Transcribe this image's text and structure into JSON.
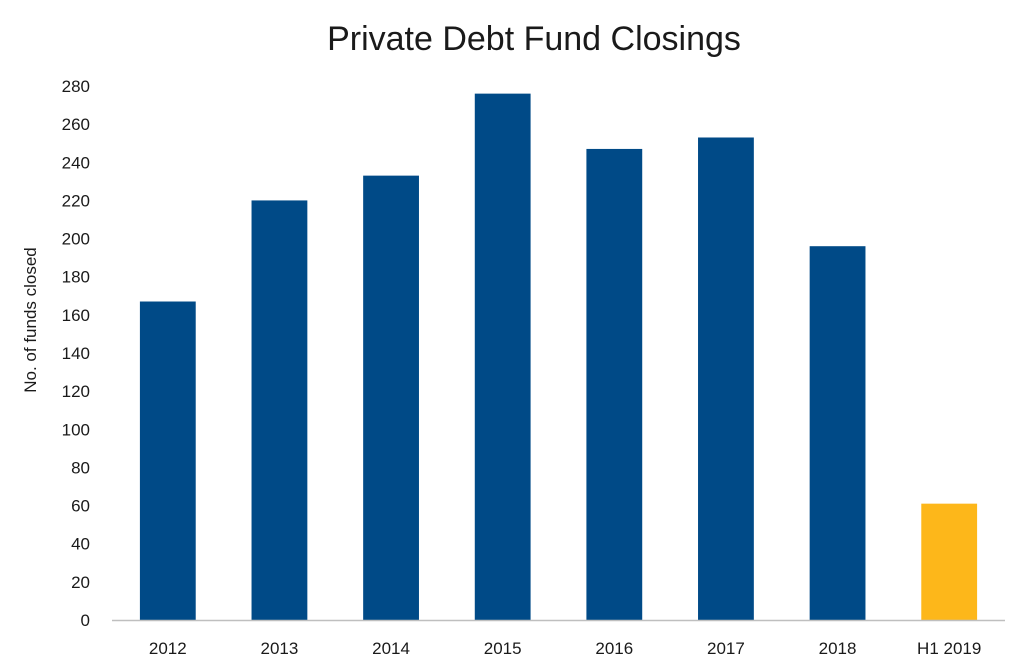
{
  "chart_data": {
    "type": "bar",
    "title": "Private Debt Fund Closings",
    "xlabel": "",
    "ylabel": "No. of funds closed",
    "categories": [
      "2012",
      "2013",
      "2014",
      "2015",
      "2016",
      "2017",
      "2018",
      "H1 2019"
    ],
    "values": [
      167,
      220,
      233,
      276,
      247,
      253,
      196,
      61
    ],
    "ylim": [
      0,
      280
    ],
    "yticks": [
      0,
      20,
      40,
      60,
      80,
      100,
      120,
      140,
      160,
      180,
      200,
      220,
      240,
      260,
      280
    ],
    "grid": false,
    "legend": "none",
    "colors": {
      "primary_bar": "#004A87",
      "highlight_bar": "#FDB71A",
      "axis": "#bfbfbf",
      "text": "#1a1a1a"
    },
    "highlight_categories": [
      "H1 2019"
    ]
  }
}
